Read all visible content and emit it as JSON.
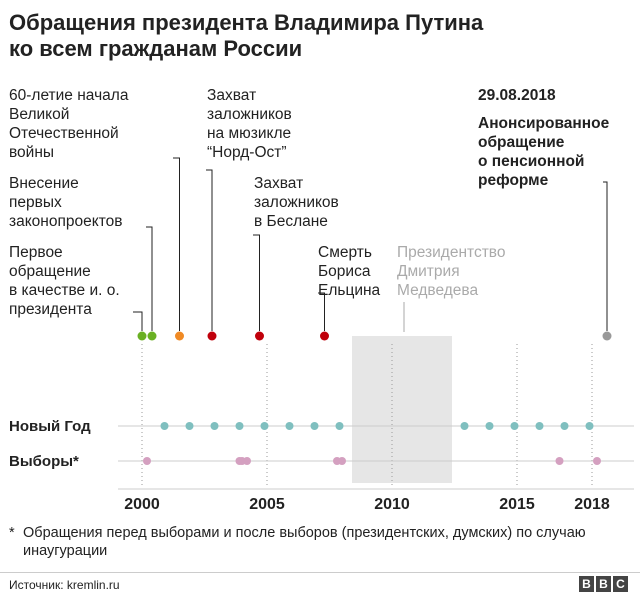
{
  "title": {
    "line1": "Обращения президента Владимира Путина",
    "line2": "ко всем гражданам России"
  },
  "chart_data": {
    "type": "timeline",
    "x_range": [
      1998,
      2019
    ],
    "x_ticks": [
      "2000",
      "2005",
      "2010",
      "2015",
      "2018"
    ],
    "shaded_period": {
      "from": 2008.4,
      "to": 2012.4,
      "label": [
        "Президентство",
        "Дмитрия",
        "Медведева"
      ]
    },
    "events": [
      {
        "year": 2000.0,
        "color": "#6ab023",
        "label": [
          "Первое",
          "обращение",
          "в качестве и. о.",
          "президента"
        ]
      },
      {
        "year": 2000.4,
        "color": "#6ab023",
        "label": [
          "Внесение",
          "первых",
          "законопроектов"
        ]
      },
      {
        "year": 2001.5,
        "color": "#f08a24",
        "label": [
          "60-летие начала",
          "Великой",
          "Отечественной",
          "войны"
        ]
      },
      {
        "year": 2002.8,
        "color": "#c0000b",
        "label": [
          "Захват",
          "заложников",
          "на мюзикле",
          "“Норд-Ост”"
        ]
      },
      {
        "year": 2004.7,
        "color": "#c0000b",
        "label": [
          "Захват",
          "заложников",
          "в Беслане"
        ]
      },
      {
        "year": 2007.3,
        "color": "#c0000b",
        "label": [
          "Смерть",
          "Бориса",
          "Ельцина"
        ]
      },
      {
        "year": 2018.6,
        "color": "#999999",
        "label": [
          "Анонсированное",
          "обращение",
          "о пенсионной",
          "реформе"
        ],
        "date": "29.08.2018"
      }
    ],
    "series": [
      {
        "name": "Новый Год",
        "color": "#7fbfbf",
        "values": [
          2000.9,
          2001.9,
          2002.9,
          2003.9,
          2004.9,
          2005.9,
          2006.9,
          2007.9,
          2012.9,
          2013.9,
          2014.9,
          2015.9,
          2016.9,
          2017.9
        ]
      },
      {
        "name": "Выборы*",
        "color": "#d4a0c0",
        "values": [
          2000.2,
          2003.9,
          2004.0,
          2004.2,
          2007.8,
          2008.0,
          2016.7,
          2018.2
        ]
      }
    ]
  },
  "footnote": {
    "star": "*",
    "text": "Обращения перед выборами и после выборов (президентских, думских) по случаю инаугурации"
  },
  "source": "Источник: kremlin.ru",
  "logo": {
    "letters": [
      "B",
      "B",
      "C"
    ]
  }
}
